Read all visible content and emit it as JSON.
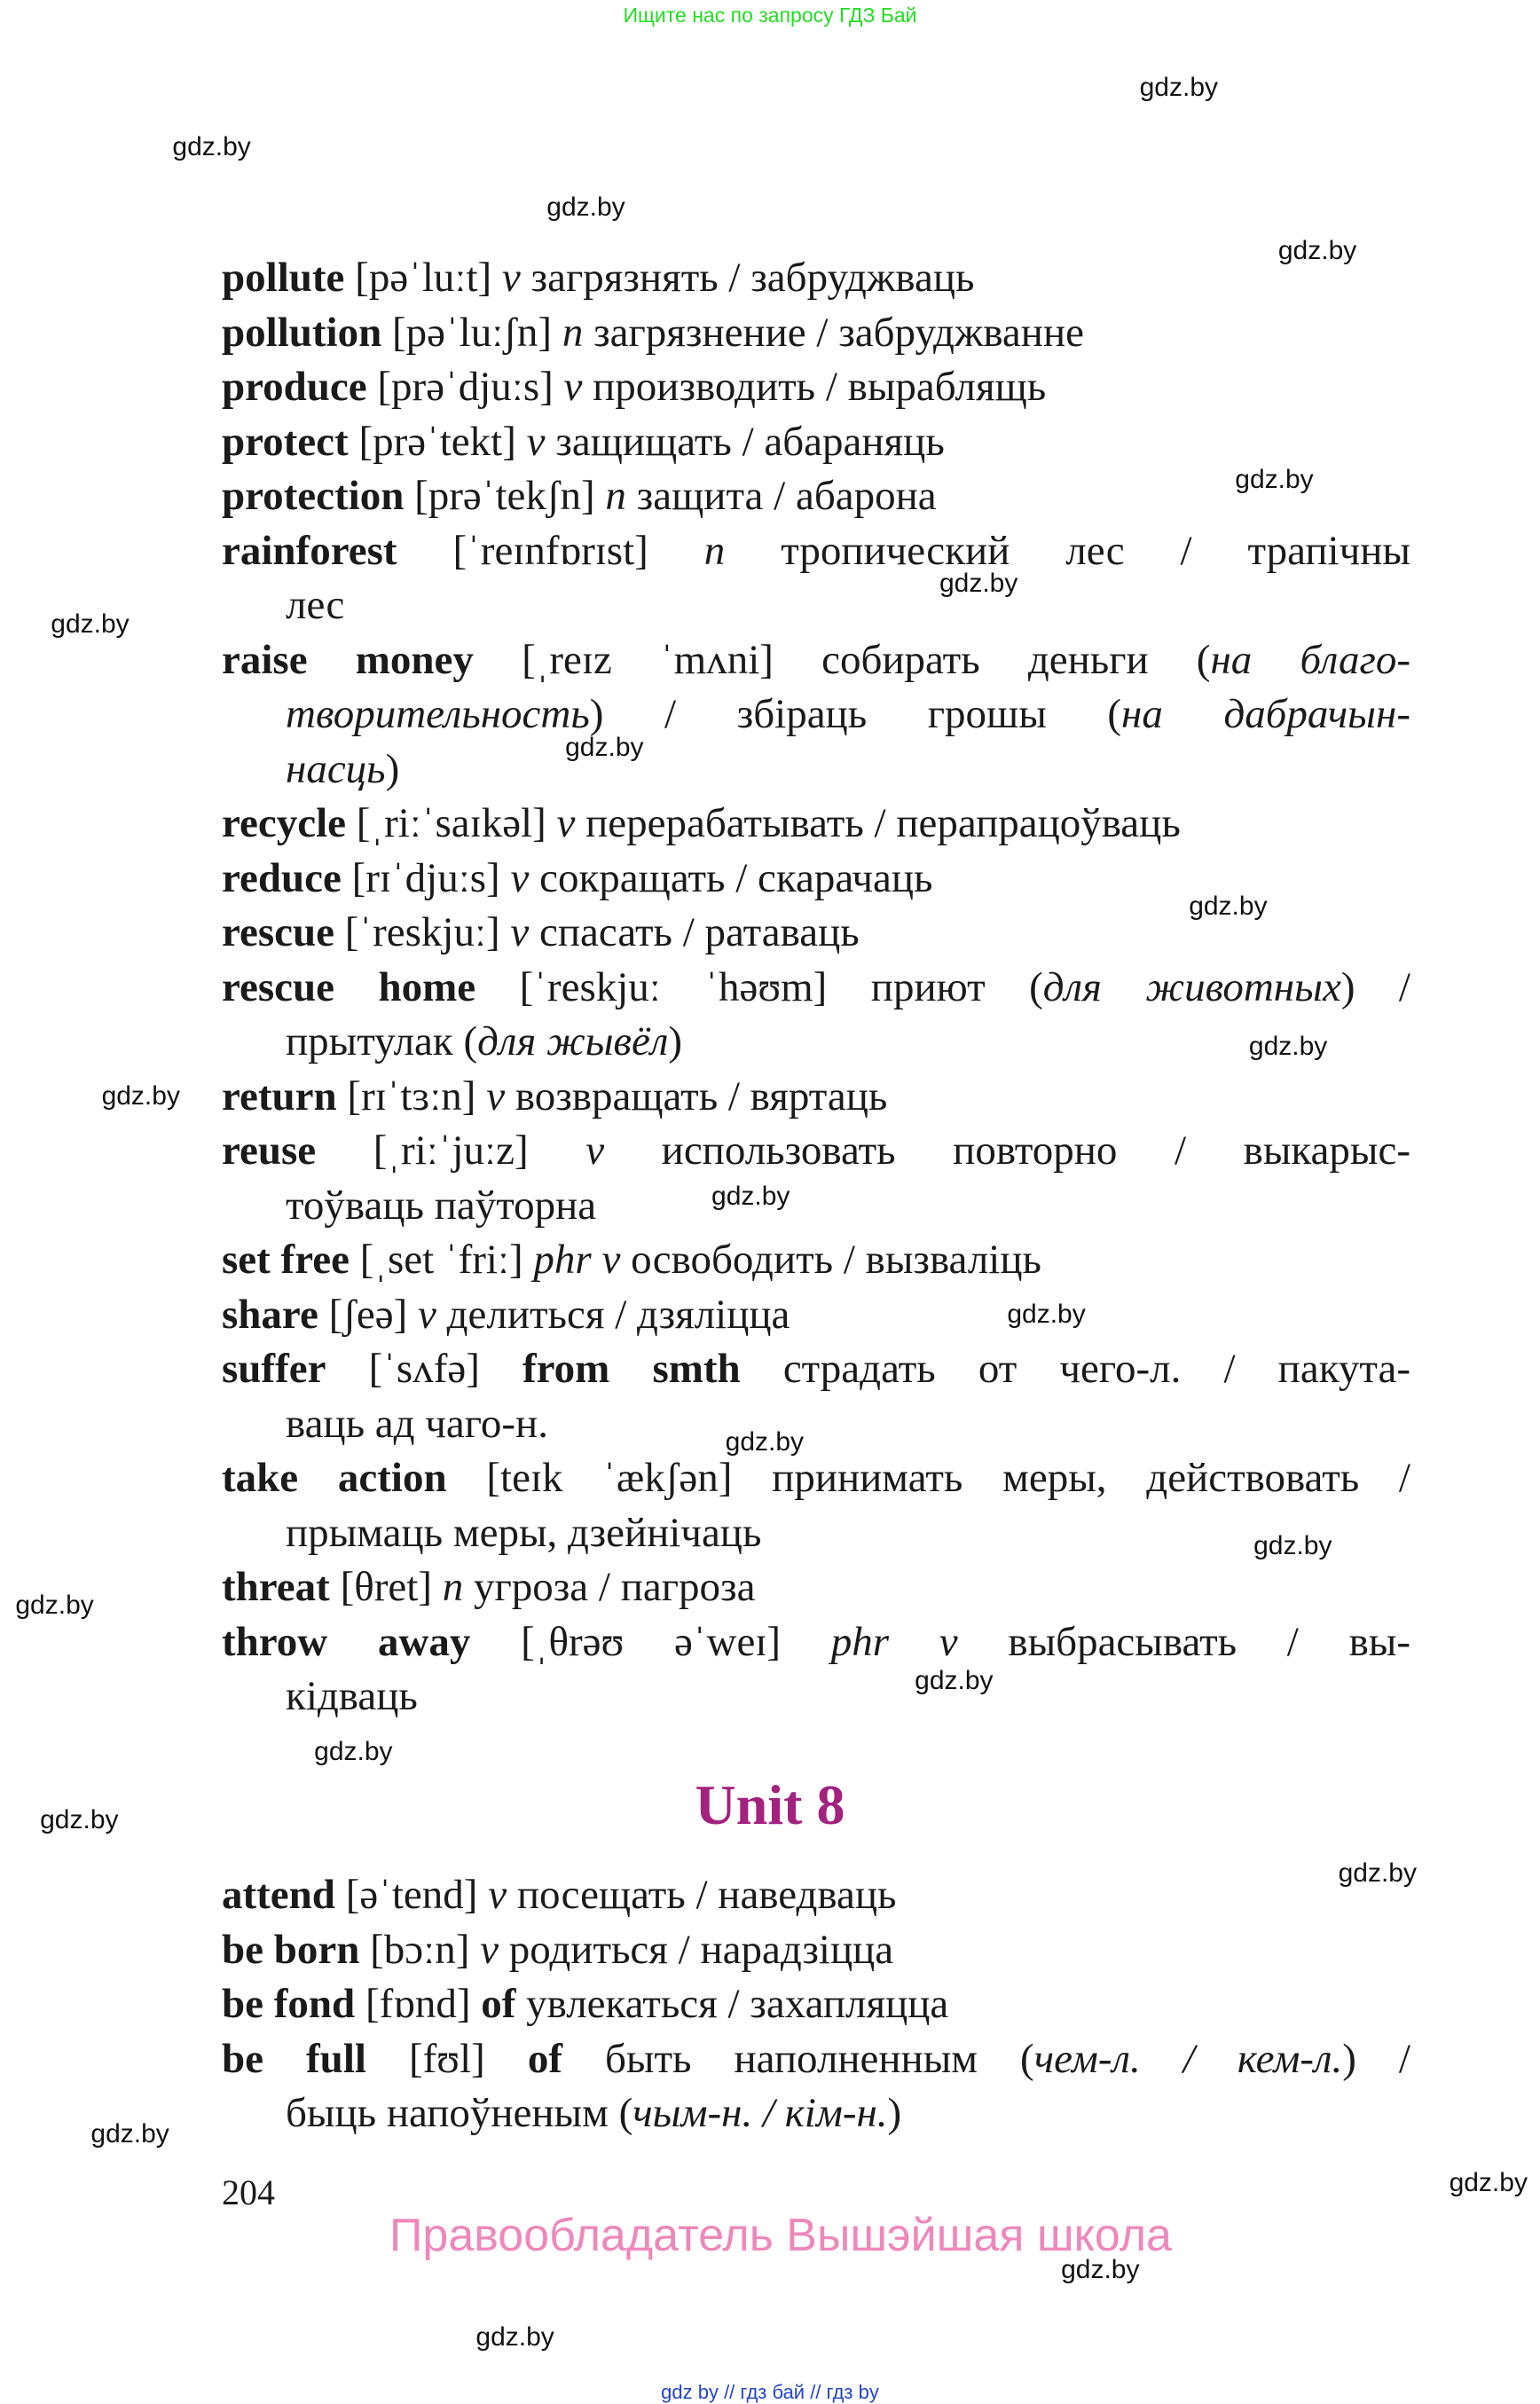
{
  "header": {
    "banner": "Ищите нас по запросу ГДЗ Бай"
  },
  "entries": [
    {
      "lines": [
        [
          {
            "t": "b",
            "v": "pollute"
          },
          {
            "t": "r",
            "v": " [pəˈluːt] "
          },
          {
            "t": "i",
            "v": "v"
          },
          {
            "t": "r",
            "v": " загрязнять / забруджваць"
          }
        ]
      ]
    },
    {
      "lines": [
        [
          {
            "t": "b",
            "v": "pollution"
          },
          {
            "t": "r",
            "v": " [pəˈluːʃn] "
          },
          {
            "t": "i",
            "v": "n"
          },
          {
            "t": "r",
            "v": " загрязнение / забруджванне"
          }
        ]
      ]
    },
    {
      "lines": [
        [
          {
            "t": "b",
            "v": "produce"
          },
          {
            "t": "r",
            "v": " [prəˈdjuːs] "
          },
          {
            "t": "i",
            "v": "v"
          },
          {
            "t": "r",
            "v": " производить / выраблящь"
          }
        ]
      ]
    },
    {
      "lines": [
        [
          {
            "t": "b",
            "v": "protect"
          },
          {
            "t": "r",
            "v": " [prəˈtekt] "
          },
          {
            "t": "i",
            "v": "v"
          },
          {
            "t": "r",
            "v": " защищать / абараняць"
          }
        ]
      ]
    },
    {
      "lines": [
        [
          {
            "t": "b",
            "v": "protection"
          },
          {
            "t": "r",
            "v": " [prəˈtekʃn] "
          },
          {
            "t": "i",
            "v": "n"
          },
          {
            "t": "r",
            "v": " защита / абарона"
          }
        ]
      ]
    },
    {
      "lines": [
        [
          {
            "t": "b",
            "v": "rainforest"
          },
          {
            "t": "r",
            "v": " [ˈreɪnfɒrɪst] "
          },
          {
            "t": "i",
            "v": "n"
          },
          {
            "t": "r",
            "v": " тропический лес / трапічны"
          }
        ],
        [
          {
            "t": "r",
            "v": "лес"
          }
        ]
      ]
    },
    {
      "lines": [
        [
          {
            "t": "b",
            "v": "raise money"
          },
          {
            "t": "r",
            "v": " [ˌreɪz ˈmʌni] собирать деньги ("
          },
          {
            "t": "i",
            "v": "на благо-"
          }
        ],
        [
          {
            "t": "i",
            "v": "творительность"
          },
          {
            "t": "r",
            "v": ") / збіраць грошы ("
          },
          {
            "t": "i",
            "v": "на дабрачын-"
          }
        ],
        [
          {
            "t": "i",
            "v": "насць"
          },
          {
            "t": "r",
            "v": ")"
          }
        ]
      ]
    },
    {
      "lines": [
        [
          {
            "t": "b",
            "v": "recycle"
          },
          {
            "t": "r",
            "v": " [ˌriːˈsaɪkəl] "
          },
          {
            "t": "i",
            "v": "v"
          },
          {
            "t": "r",
            "v": " перерабатывать / перапрацоўваць"
          }
        ]
      ]
    },
    {
      "lines": [
        [
          {
            "t": "b",
            "v": "reduce"
          },
          {
            "t": "r",
            "v": " [rɪˈdjuːs] "
          },
          {
            "t": "i",
            "v": "v"
          },
          {
            "t": "r",
            "v": " сокращать / скарачаць"
          }
        ]
      ]
    },
    {
      "lines": [
        [
          {
            "t": "b",
            "v": "rescue"
          },
          {
            "t": "r",
            "v": " [ˈreskjuː] "
          },
          {
            "t": "i",
            "v": "v"
          },
          {
            "t": "r",
            "v": " спасать / ратаваць"
          }
        ]
      ]
    },
    {
      "lines": [
        [
          {
            "t": "b",
            "v": "rescue home"
          },
          {
            "t": "r",
            "v": " [ˈreskjuː ˈhəʊm] приют ("
          },
          {
            "t": "i",
            "v": "для животных"
          },
          {
            "t": "r",
            "v": ") /"
          }
        ],
        [
          {
            "t": "r",
            "v": "прытулак ("
          },
          {
            "t": "i",
            "v": "для жывёл"
          },
          {
            "t": "r",
            "v": ")"
          }
        ]
      ]
    },
    {
      "lines": [
        [
          {
            "t": "b",
            "v": "return"
          },
          {
            "t": "r",
            "v": " [rɪˈtɜːn] "
          },
          {
            "t": "i",
            "v": "v"
          },
          {
            "t": "r",
            "v": " возвращать / вяртаць"
          }
        ]
      ]
    },
    {
      "lines": [
        [
          {
            "t": "b",
            "v": "reuse"
          },
          {
            "t": "r",
            "v": " [ˌriːˈjuːz] "
          },
          {
            "t": "i",
            "v": "v"
          },
          {
            "t": "r",
            "v": " использовать повторно / выкарыс-"
          }
        ],
        [
          {
            "t": "r",
            "v": "тоўваць паўторна"
          }
        ]
      ]
    },
    {
      "lines": [
        [
          {
            "t": "b",
            "v": "set free"
          },
          {
            "t": "r",
            "v": " [ˌset ˈfriː] "
          },
          {
            "t": "i",
            "v": "phr v"
          },
          {
            "t": "r",
            "v": " освободить / вызваліць"
          }
        ]
      ]
    },
    {
      "lines": [
        [
          {
            "t": "b",
            "v": "share"
          },
          {
            "t": "r",
            "v": " [ʃeə] "
          },
          {
            "t": "i",
            "v": "v"
          },
          {
            "t": "r",
            "v": " делиться / дзяліцца"
          }
        ]
      ]
    },
    {
      "lines": [
        [
          {
            "t": "b",
            "v": "suffer"
          },
          {
            "t": "r",
            "v": " [ˈsʌfə] "
          },
          {
            "t": "b",
            "v": "from smth"
          },
          {
            "t": "r",
            "v": " страдать от чего-л. / пакута-"
          }
        ],
        [
          {
            "t": "r",
            "v": "ваць ад чаго-н."
          }
        ]
      ]
    },
    {
      "lines": [
        [
          {
            "t": "b",
            "v": "take action"
          },
          {
            "t": "r",
            "v": " [teɪk ˈækʃən] принимать меры, действовать /"
          }
        ],
        [
          {
            "t": "r",
            "v": "прымаць меры, дзейнічаць"
          }
        ]
      ]
    },
    {
      "lines": [
        [
          {
            "t": "b",
            "v": "threat"
          },
          {
            "t": "r",
            "v": " [θret] "
          },
          {
            "t": "i",
            "v": "n"
          },
          {
            "t": "r",
            "v": " угроза / пагроза"
          }
        ]
      ]
    },
    {
      "lines": [
        [
          {
            "t": "b",
            "v": "throw away"
          },
          {
            "t": "r",
            "v": " [ˌθrəʊ əˈweɪ] "
          },
          {
            "t": "i",
            "v": "phr v"
          },
          {
            "t": "r",
            "v": " выбрасывать / вы-"
          }
        ],
        [
          {
            "t": "r",
            "v": "кідваць"
          }
        ]
      ]
    }
  ],
  "unit_title": "Unit 8",
  "entries2": [
    {
      "lines": [
        [
          {
            "t": "b",
            "v": "attend"
          },
          {
            "t": "r",
            "v": " [əˈtend] "
          },
          {
            "t": "i",
            "v": "v"
          },
          {
            "t": "r",
            "v": " посещать / наведваць"
          }
        ]
      ]
    },
    {
      "lines": [
        [
          {
            "t": "b",
            "v": "be born"
          },
          {
            "t": "r",
            "v": " [bɔːn] "
          },
          {
            "t": "i",
            "v": "v"
          },
          {
            "t": "r",
            "v": " родиться / нарадзіцца"
          }
        ]
      ]
    },
    {
      "lines": [
        [
          {
            "t": "b",
            "v": "be fond"
          },
          {
            "t": "r",
            "v": " [fɒnd] "
          },
          {
            "t": "b",
            "v": "of"
          },
          {
            "t": "r",
            "v": " увлекаться / захапляцца"
          }
        ]
      ]
    },
    {
      "lines": [
        [
          {
            "t": "b",
            "v": "be full"
          },
          {
            "t": "r",
            "v": " [fʊl] "
          },
          {
            "t": "b",
            "v": "of"
          },
          {
            "t": "r",
            "v": " быть наполненным ("
          },
          {
            "t": "i",
            "v": "чем-л. / кем-л."
          },
          {
            "t": "r",
            "v": ") /"
          }
        ],
        [
          {
            "t": "r",
            "v": "быць напоўненым ("
          },
          {
            "t": "i",
            "v": "чым-н. / кім-н."
          },
          {
            "t": "r",
            "v": ")"
          }
        ]
      ]
    }
  ],
  "page_number": "204",
  "rights_holder": "Правообладатель Вышэйшая школа",
  "footer": "gdz by  //  гдз бай  //  гдз by",
  "watermarks": [
    "gdz.by",
    "gdz.by",
    "gdz.by",
    "gdz.by",
    "gdz.by",
    "gdz.by",
    "gdz.by",
    "gdz.by",
    "gdz.by",
    "gdz.by",
    "gdz.by",
    "gdz.by",
    "gdz.by",
    "gdz.by",
    "gdz.by",
    "gdz.by",
    "gdz.by",
    "gdz.by",
    "gdz.by",
    "gdz.by",
    "gdz.by",
    "gdz.by",
    "gdz.by",
    "gdz.by"
  ],
  "colors": {
    "unit_title": "#a3217f",
    "banner": "#22dd22",
    "rights": "#ee88bb",
    "footer": "#2244cc"
  }
}
